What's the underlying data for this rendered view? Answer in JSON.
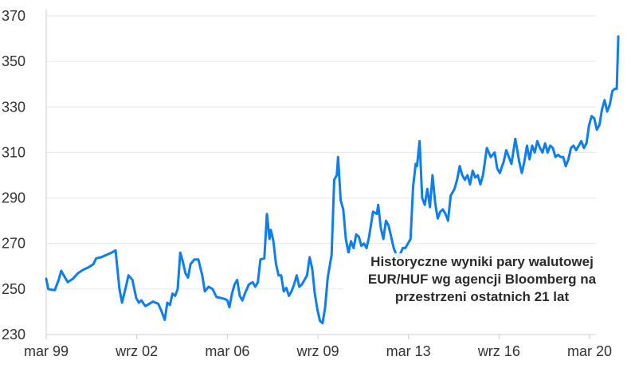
{
  "colors": {
    "line": "#0c7ef0",
    "grid": "#e6e6e6",
    "axis": "#cfcfcf",
    "text": "#333333"
  },
  "chart_data": {
    "type": "line",
    "title": "",
    "xlabel": "",
    "ylabel": "",
    "annotation": "Historyczne wyniki pary walutowej EUR/HUF wg agencji Bloomberg na przestrzeni ostatnich 21 lat",
    "grid": true,
    "ylim": [
      230,
      370
    ],
    "xlim": [
      1999.17,
      2020.17
    ],
    "y_ticks": [
      230,
      250,
      270,
      290,
      310,
      330,
      350,
      370
    ],
    "x_ticks": [
      {
        "x": 1999.17,
        "label": "mar 99"
      },
      {
        "x": 2002.67,
        "label": "wrz 02"
      },
      {
        "x": 2006.17,
        "label": "mar 06"
      },
      {
        "x": 2009.67,
        "label": "wrz 09"
      },
      {
        "x": 2013.17,
        "label": "mar 13"
      },
      {
        "x": 2016.67,
        "label": "wrz 16"
      },
      {
        "x": 2020.17,
        "label": "mar 20"
      }
    ],
    "series": [
      {
        "name": "",
        "points": [
          [
            1999.17,
            254.5
          ],
          [
            1999.25,
            250
          ],
          [
            1999.5,
            249.5
          ],
          [
            1999.65,
            254
          ],
          [
            1999.75,
            258
          ],
          [
            1999.85,
            256
          ],
          [
            2000.0,
            253
          ],
          [
            2000.2,
            254.5
          ],
          [
            2000.4,
            257
          ],
          [
            2000.6,
            258.5
          ],
          [
            2000.8,
            259.5
          ],
          [
            2001.0,
            261
          ],
          [
            2001.1,
            263.5
          ],
          [
            2001.3,
            264
          ],
          [
            2001.5,
            265
          ],
          [
            2001.7,
            266
          ],
          [
            2001.85,
            267
          ],
          [
            2002.0,
            250
          ],
          [
            2002.1,
            244
          ],
          [
            2002.25,
            251
          ],
          [
            2002.35,
            256
          ],
          [
            2002.5,
            254
          ],
          [
            2002.65,
            246
          ],
          [
            2002.75,
            244
          ],
          [
            2002.85,
            245
          ],
          [
            2003.0,
            242.5
          ],
          [
            2003.15,
            243.5
          ],
          [
            2003.3,
            244.5
          ],
          [
            2003.5,
            243.5
          ],
          [
            2003.6,
            241
          ],
          [
            2003.75,
            236.5
          ],
          [
            2003.85,
            244
          ],
          [
            2003.95,
            243
          ],
          [
            2004.05,
            248
          ],
          [
            2004.15,
            247
          ],
          [
            2004.25,
            250
          ],
          [
            2004.35,
            266
          ],
          [
            2004.45,
            262
          ],
          [
            2004.55,
            257
          ],
          [
            2004.65,
            255
          ],
          [
            2004.75,
            261
          ],
          [
            2004.9,
            263
          ],
          [
            2005.05,
            263
          ],
          [
            2005.2,
            256
          ],
          [
            2005.3,
            249
          ],
          [
            2005.45,
            251
          ],
          [
            2005.6,
            250
          ],
          [
            2005.75,
            246.5
          ],
          [
            2005.95,
            246
          ],
          [
            2006.1,
            245.5
          ],
          [
            2006.17,
            245
          ],
          [
            2006.25,
            242
          ],
          [
            2006.35,
            248
          ],
          [
            2006.45,
            252
          ],
          [
            2006.55,
            254
          ],
          [
            2006.65,
            247
          ],
          [
            2006.75,
            245
          ],
          [
            2006.85,
            248
          ],
          [
            2007.0,
            252
          ],
          [
            2007.15,
            253
          ],
          [
            2007.25,
            251
          ],
          [
            2007.35,
            253
          ],
          [
            2007.45,
            263
          ],
          [
            2007.6,
            263.5
          ],
          [
            2007.7,
            283
          ],
          [
            2007.8,
            272
          ],
          [
            2007.85,
            276
          ],
          [
            2007.95,
            271
          ],
          [
            2008.05,
            261
          ],
          [
            2008.15,
            256
          ],
          [
            2008.25,
            256
          ],
          [
            2008.35,
            249
          ],
          [
            2008.45,
            250.5
          ],
          [
            2008.55,
            247
          ],
          [
            2008.65,
            249
          ],
          [
            2008.75,
            252
          ],
          [
            2008.85,
            256
          ],
          [
            2008.95,
            251
          ],
          [
            2009.05,
            252
          ],
          [
            2009.15,
            254
          ],
          [
            2009.25,
            256
          ],
          [
            2009.35,
            264
          ],
          [
            2009.45,
            259
          ],
          [
            2009.55,
            248
          ],
          [
            2009.65,
            241
          ],
          [
            2009.75,
            236
          ],
          [
            2009.85,
            235
          ],
          [
            2009.95,
            242
          ],
          [
            2010.05,
            255
          ],
          [
            2010.2,
            265
          ],
          [
            2010.3,
            298
          ],
          [
            2010.4,
            300
          ],
          [
            2010.45,
            308
          ],
          [
            2010.55,
            289
          ],
          [
            2010.65,
            285
          ],
          [
            2010.75,
            272
          ],
          [
            2010.85,
            266
          ],
          [
            2010.95,
            271
          ],
          [
            2011.05,
            268
          ],
          [
            2011.15,
            274
          ],
          [
            2011.25,
            273
          ],
          [
            2011.35,
            269
          ],
          [
            2011.45,
            270
          ],
          [
            2011.55,
            268
          ],
          [
            2011.65,
            273
          ],
          [
            2011.8,
            284
          ],
          [
            2011.95,
            283
          ],
          [
            2012.0,
            287
          ],
          [
            2012.1,
            277
          ],
          [
            2012.2,
            272
          ],
          [
            2012.3,
            280
          ],
          [
            2012.4,
            278
          ],
          [
            2012.5,
            273
          ],
          [
            2012.6,
            268
          ],
          [
            2012.7,
            265
          ],
          [
            2012.8,
            264
          ],
          [
            2012.95,
            268
          ],
          [
            2013.05,
            268
          ],
          [
            2013.15,
            270
          ],
          [
            2013.25,
            272
          ],
          [
            2013.35,
            295
          ],
          [
            2013.45,
            305
          ],
          [
            2013.5,
            304
          ],
          [
            2013.6,
            315
          ],
          [
            2013.7,
            290
          ],
          [
            2013.8,
            287
          ],
          [
            2013.9,
            294
          ],
          [
            2014.0,
            286
          ],
          [
            2014.1,
            300
          ],
          [
            2014.2,
            288
          ],
          [
            2014.3,
            281
          ],
          [
            2014.4,
            284
          ],
          [
            2014.5,
            285
          ],
          [
            2014.6,
            283
          ],
          [
            2014.7,
            280
          ],
          [
            2014.8,
            291
          ],
          [
            2014.95,
            294
          ],
          [
            2015.05,
            298
          ],
          [
            2015.15,
            304
          ],
          [
            2015.25,
            300
          ],
          [
            2015.35,
            298
          ],
          [
            2015.45,
            300
          ],
          [
            2015.55,
            296
          ],
          [
            2015.65,
            302
          ],
          [
            2015.75,
            299
          ],
          [
            2015.85,
            300
          ],
          [
            2015.95,
            296
          ],
          [
            2016.05,
            300
          ],
          [
            2016.2,
            312
          ],
          [
            2016.35,
            308
          ],
          [
            2016.5,
            310
          ],
          [
            2016.6,
            303
          ],
          [
            2016.7,
            301
          ],
          [
            2016.85,
            306
          ],
          [
            2016.95,
            311
          ],
          [
            2017.05,
            308
          ],
          [
            2017.15,
            305
          ],
          [
            2017.3,
            316
          ],
          [
            2017.45,
            306
          ],
          [
            2017.55,
            301
          ],
          [
            2017.65,
            306
          ],
          [
            2017.75,
            313
          ],
          [
            2017.85,
            307
          ],
          [
            2017.95,
            313
          ],
          [
            2018.05,
            310
          ],
          [
            2018.15,
            315
          ],
          [
            2018.25,
            312
          ],
          [
            2018.35,
            310
          ],
          [
            2018.45,
            314
          ],
          [
            2018.55,
            310
          ],
          [
            2018.65,
            313
          ],
          [
            2018.75,
            312
          ],
          [
            2018.85,
            308
          ],
          [
            2018.95,
            309
          ],
          [
            2019.05,
            308
          ],
          [
            2019.15,
            308
          ],
          [
            2019.25,
            304
          ],
          [
            2019.35,
            307
          ],
          [
            2019.45,
            312
          ],
          [
            2019.55,
            313
          ],
          [
            2019.65,
            311
          ],
          [
            2019.75,
            313
          ],
          [
            2019.85,
            315
          ],
          [
            2019.95,
            312
          ],
          [
            2020.05,
            314
          ],
          [
            2020.15,
            322
          ],
          [
            2020.25,
            326
          ],
          [
            2020.35,
            325
          ],
          [
            2020.45,
            320
          ],
          [
            2020.55,
            322
          ],
          [
            2020.65,
            329
          ],
          [
            2020.75,
            333
          ],
          [
            2020.85,
            328
          ],
          [
            2020.95,
            331
          ],
          [
            2021.05,
            337
          ],
          [
            2021.15,
            338
          ],
          [
            2021.22,
            338
          ],
          [
            2021.28,
            361
          ]
        ]
      }
    ]
  }
}
